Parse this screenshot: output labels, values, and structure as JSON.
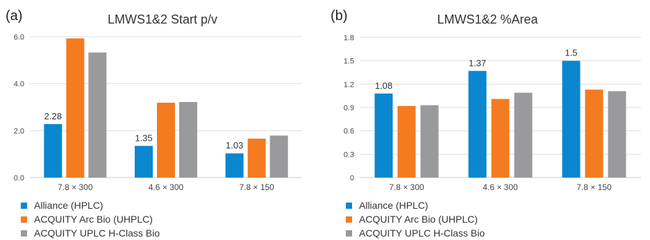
{
  "colors": {
    "alliance": "#0a87cf",
    "arc": "#f47b20",
    "hclass": "#9a9a9c",
    "grid": "#dedede",
    "axis": "#c8c8c8"
  },
  "chart_data": [
    {
      "type": "bar",
      "panel_label": "(a)",
      "title": "LMWS1&2 Start p/v",
      "categories": [
        "7.8 × 300",
        "4.6 × 300",
        "7.8 × 150"
      ],
      "series": [
        {
          "name": "Alliance (HPLC)",
          "values": [
            2.28,
            1.35,
            1.03
          ]
        },
        {
          "name": "ACQUITY Arc Bio (UHPLC)",
          "values": [
            5.93,
            3.19,
            1.66
          ]
        },
        {
          "name": "ACQUITY UPLC H-Class Bio",
          "values": [
            5.33,
            3.22,
            1.79
          ]
        }
      ],
      "data_labels": [
        "2.28",
        "1.35",
        "1.03"
      ],
      "yticks": [
        "0.0",
        "2.0",
        "4.0",
        "6.0"
      ],
      "ylim": [
        0,
        6.0
      ],
      "grid": true,
      "legend": "bottom-left"
    },
    {
      "type": "bar",
      "panel_label": "(b)",
      "title": "LMWS1&2 %Area",
      "categories": [
        "7.8 × 300",
        "4.6 × 300",
        "7.8 × 150"
      ],
      "series": [
        {
          "name": "Alliance (HPLC)",
          "values": [
            1.08,
            1.37,
            1.5
          ]
        },
        {
          "name": "ACQUITY Arc Bio (UHPLC)",
          "values": [
            0.92,
            1.01,
            1.13
          ]
        },
        {
          "name": "ACQUITY UPLC H-Class Bio",
          "values": [
            0.93,
            1.09,
            1.11
          ]
        }
      ],
      "data_labels": [
        "1.08",
        "1.37",
        "1.5"
      ],
      "yticks": [
        "0",
        "0.3",
        "0.6",
        "0.9",
        "1.2",
        "1.5",
        "1.8"
      ],
      "ylim": [
        0,
        1.8
      ],
      "grid": true,
      "legend": "bottom-left"
    }
  ]
}
